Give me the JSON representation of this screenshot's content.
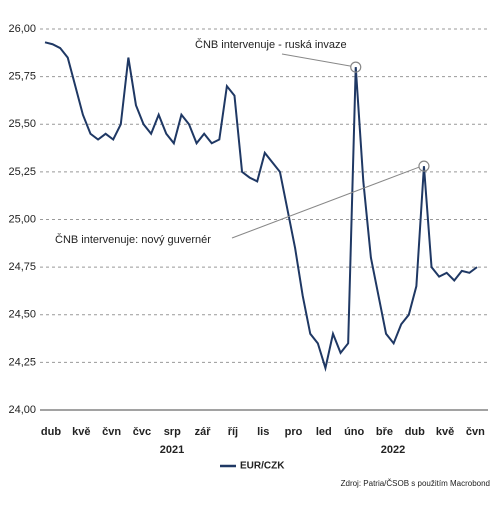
{
  "chart_data": {
    "type": "line",
    "x": [
      "dub",
      null,
      null,
      null,
      "kvě",
      null,
      null,
      null,
      "čvn",
      null,
      null,
      null,
      "čvc",
      null,
      null,
      null,
      "srp",
      null,
      null,
      null,
      "zář",
      null,
      null,
      null,
      "říj",
      null,
      null,
      null,
      "lis",
      null,
      null,
      null,
      "pro",
      null,
      null,
      null,
      "led",
      null,
      null,
      null,
      "úno",
      null,
      null,
      null,
      "bře",
      null,
      null,
      null,
      "dub",
      null,
      null,
      null,
      "kvě",
      null,
      null,
      null,
      "čvn",
      null
    ],
    "series": [
      {
        "name": "EUR/CZK",
        "color": "#1f3864",
        "values": [
          25.93,
          25.92,
          25.9,
          25.85,
          25.7,
          25.55,
          25.45,
          25.42,
          25.45,
          25.42,
          25.5,
          25.85,
          25.6,
          25.5,
          25.45,
          25.55,
          25.45,
          25.4,
          25.55,
          25.5,
          25.4,
          25.45,
          25.4,
          25.42,
          25.7,
          25.65,
          25.25,
          25.22,
          25.2,
          25.35,
          25.3,
          25.25,
          25.05,
          24.85,
          24.6,
          24.4,
          24.35,
          24.22,
          24.4,
          24.3,
          24.35,
          25.8,
          25.2,
          24.8,
          24.6,
          24.4,
          24.35,
          24.45,
          24.5,
          24.65,
          25.28,
          24.75,
          24.7,
          24.72,
          24.68,
          24.73,
          24.72,
          24.75
        ]
      }
    ],
    "year_labels": [
      "2021",
      "2022"
    ],
    "annotations": [
      "ČNB intervenuje - ruská invaze",
      "ČNB intervenuje: nový guvernér"
    ],
    "source": "Zdroj: Patria/ČSOB s použitím Macrobond",
    "ylim": [
      24.0,
      26.0
    ],
    "yticks": [
      {
        "value": 24.0,
        "label": "24,00"
      },
      {
        "value": 24.25,
        "label": "24,25"
      },
      {
        "value": 24.5,
        "label": "24,50"
      },
      {
        "value": 24.75,
        "label": "24,75"
      },
      {
        "value": 25.0,
        "label": "25,00"
      },
      {
        "value": 25.25,
        "label": "25,25"
      },
      {
        "value": 25.5,
        "label": "25,50"
      },
      {
        "value": 25.75,
        "label": "25,75"
      },
      {
        "value": 26.0,
        "label": "26,00"
      }
    ],
    "grid": true
  }
}
